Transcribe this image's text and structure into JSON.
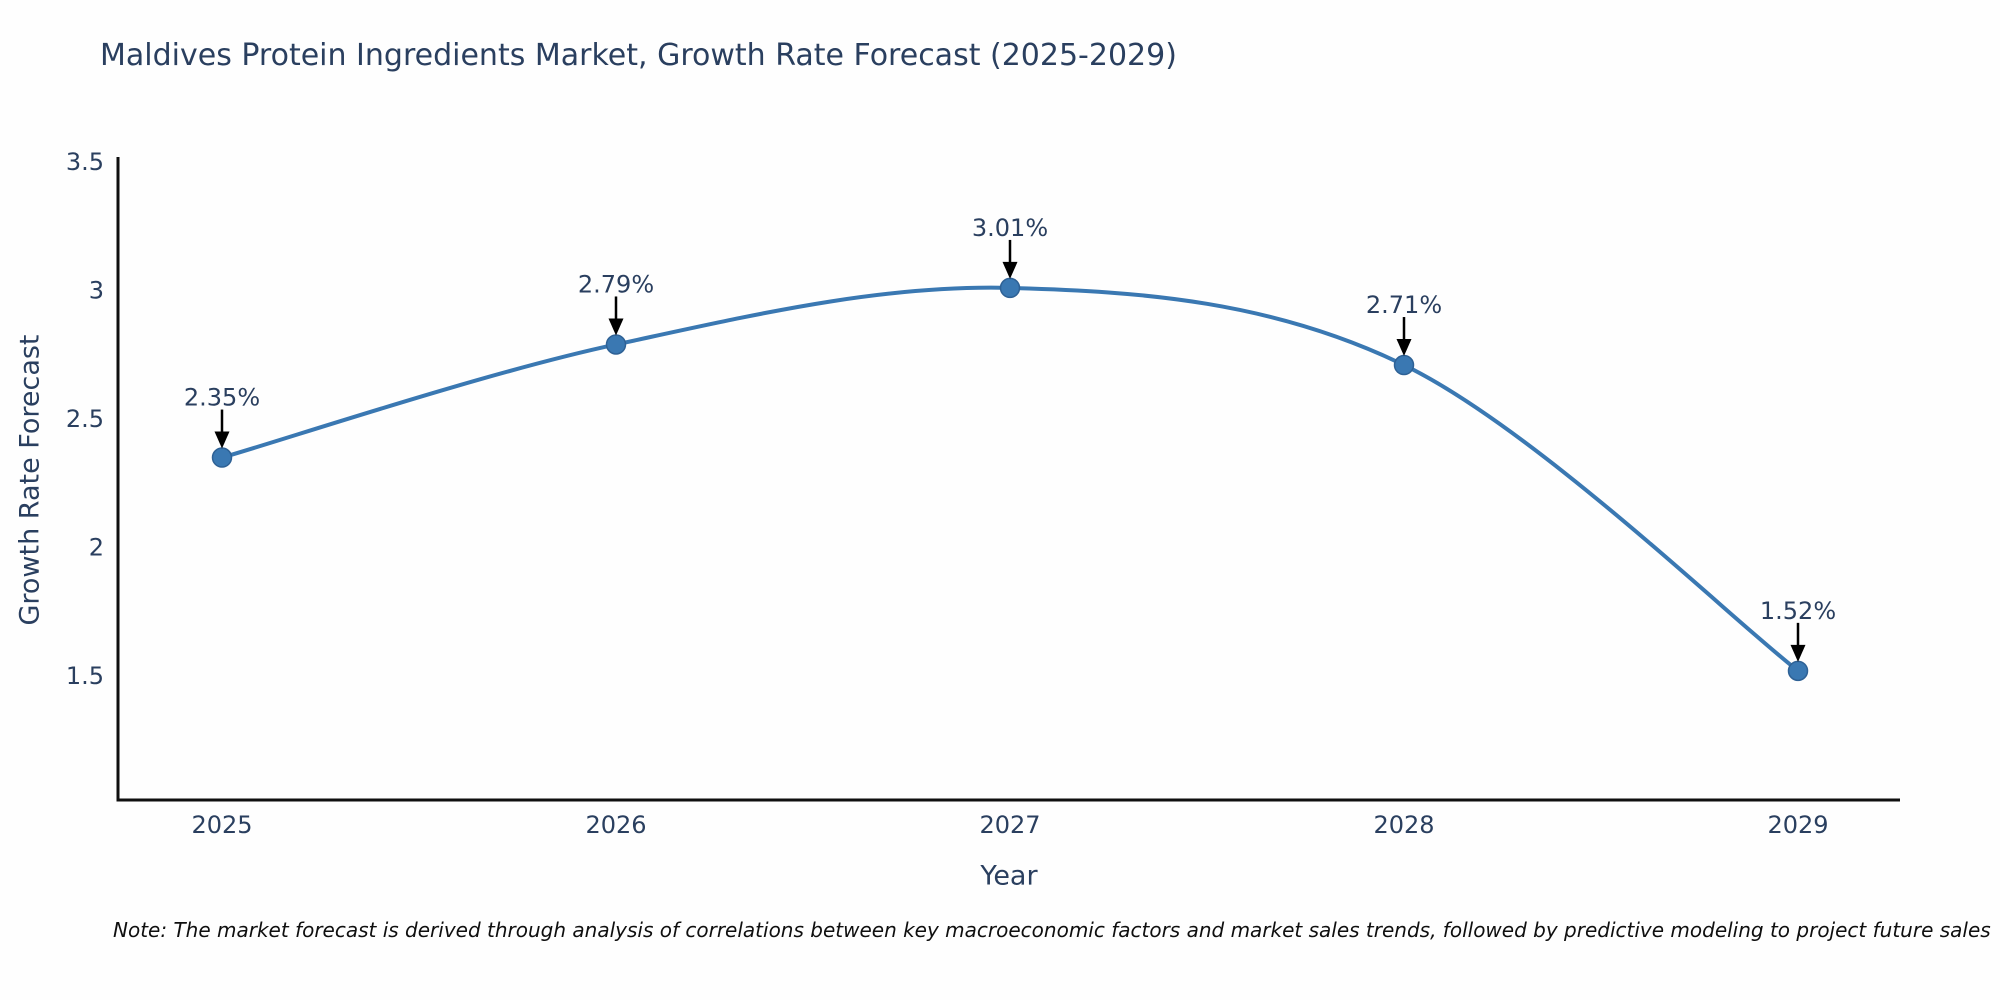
{
  "title": "Maldives Protein Ingredients Market, Growth Rate Forecast (2025-2029)",
  "note": "Note: The market forecast is derived through analysis of correlations between key macroeconomic factors and market sales trends, followed by predictive modeling to project future sales",
  "chart_data": {
    "type": "line",
    "title": "Maldives Protein Ingredients Market, Growth Rate Forecast (2025-2029)",
    "xlabel": "Year",
    "ylabel": "Growth Rate Forecast",
    "x": [
      2025,
      2026,
      2027,
      2028,
      2029
    ],
    "values": [
      2.35,
      2.79,
      3.01,
      2.71,
      1.52
    ],
    "point_labels": [
      "2.35%",
      "2.79%",
      "3.01%",
      "2.71%",
      "1.52%"
    ],
    "xtick_labels": [
      "2025",
      "2026",
      "2027",
      "2028",
      "2029"
    ],
    "ytick_values": [
      3.5,
      3,
      2.5,
      2,
      1.5
    ],
    "ytick_labels": [
      "3.5",
      "3",
      "2.5",
      "2",
      "1.5"
    ],
    "ylim": [
      1.02,
      3.52
    ],
    "grid": false,
    "legend": "none",
    "line_style": "spline",
    "colors": {
      "line": "#3a78b2",
      "marker": "#3a78b2",
      "marker_edge": "#2e6195",
      "annotation_arrow": "#000000",
      "text": "#2a3f5f",
      "axis": "#0f0f0f",
      "background": "#fefefe"
    }
  }
}
